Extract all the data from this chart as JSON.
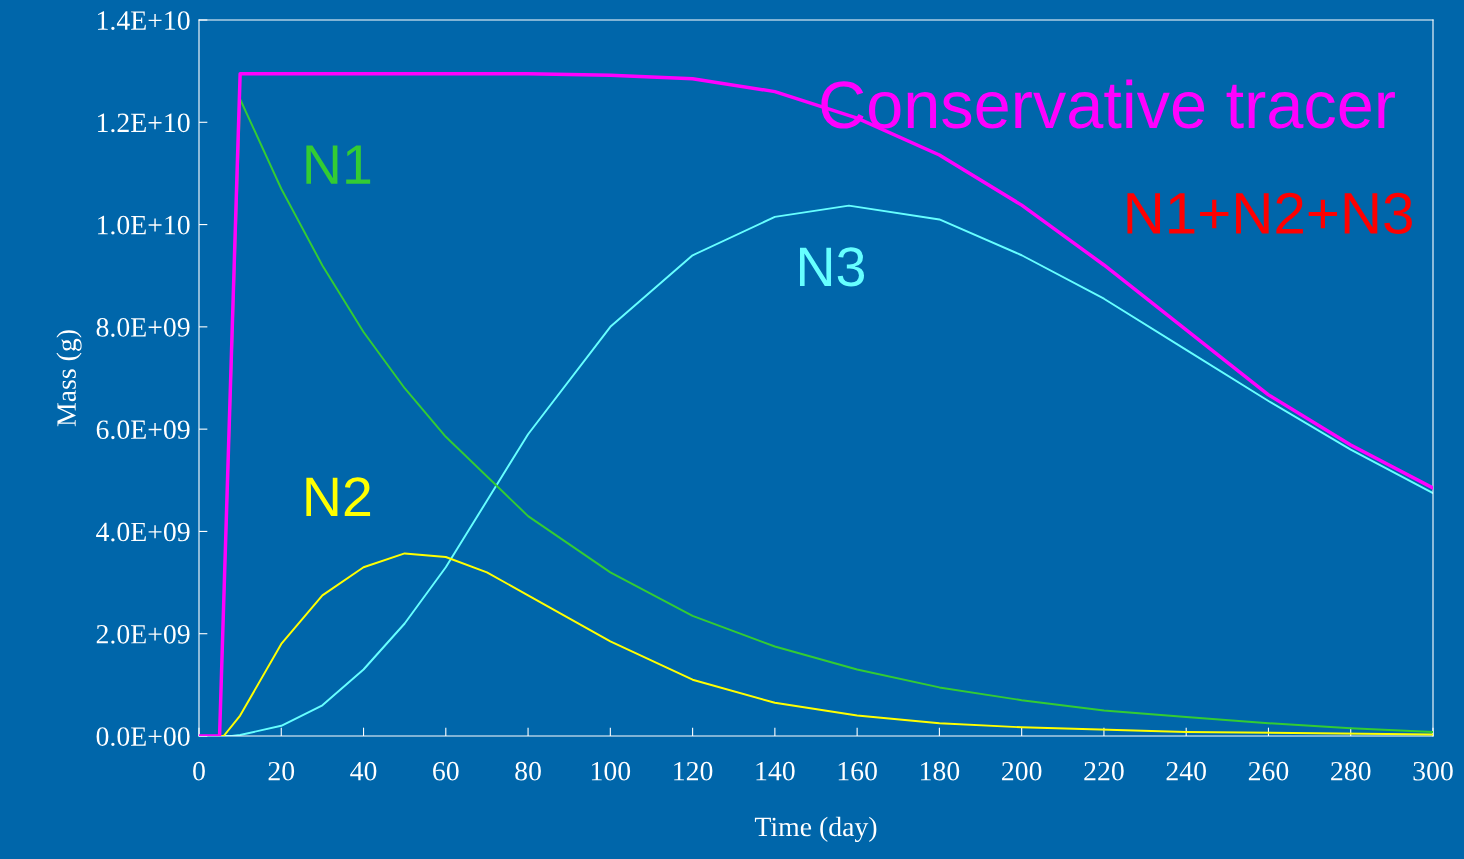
{
  "chart_data": {
    "type": "line",
    "xlabel": "Time (day)",
    "ylabel": "Mass (g)",
    "xlim": [
      0,
      300
    ],
    "xticks": [
      0,
      20,
      40,
      60,
      80,
      100,
      120,
      140,
      160,
      180,
      200,
      220,
      240,
      260,
      280,
      300
    ],
    "ylim": [
      0,
      14000000000
    ],
    "yticks": [
      {
        "value": 0,
        "label": "0.0E+00"
      },
      {
        "value": 2000000000,
        "label": "2.0E+09"
      },
      {
        "value": 4000000000,
        "label": "4.0E+09"
      },
      {
        "value": 6000000000,
        "label": "6.0E+09"
      },
      {
        "value": 8000000000,
        "label": "8.0E+09"
      },
      {
        "value": 10000000000,
        "label": "1.0E+10"
      },
      {
        "value": 12000000000,
        "label": "1.2E+10"
      },
      {
        "value": 14000000000,
        "label": "1.4E+10"
      }
    ],
    "grid": false,
    "legend": false,
    "marker": "none",
    "line_style": "solid",
    "annotations": [
      "N1+N2+N3"
    ],
    "series": [
      {
        "name": "Conservative tracer",
        "color": "#ff00ff",
        "x": [
          0,
          5,
          10,
          40,
          80,
          100,
          120,
          140,
          160,
          180,
          200,
          220,
          240,
          260,
          280,
          300
        ],
        "values": [
          0,
          0,
          12950000000,
          12950000000,
          12950000000,
          12920000000,
          12850000000,
          12600000000,
          12080000000,
          11360000000,
          10380000000,
          9210000000,
          7940000000,
          6670000000,
          5690000000,
          4850000000
        ]
      },
      {
        "name": "N1",
        "color": "#33cc33",
        "x": [
          0,
          5,
          10,
          20,
          30,
          40,
          50,
          60,
          80,
          100,
          120,
          140,
          160,
          180,
          200,
          220,
          240,
          260,
          280,
          300
        ],
        "values": [
          0,
          0,
          12450000000,
          10700000000,
          9200000000,
          7900000000,
          6800000000,
          5850000000,
          4300000000,
          3200000000,
          2350000000,
          1750000000,
          1300000000,
          950000000,
          700000000,
          500000000,
          370000000,
          250000000,
          150000000,
          80000000
        ]
      },
      {
        "name": "N2",
        "color": "#ffff00",
        "x": [
          0,
          6,
          10,
          20,
          30,
          40,
          50,
          60,
          70,
          80,
          100,
          120,
          140,
          160,
          180,
          200,
          240,
          300
        ],
        "values": [
          0,
          0,
          400000000,
          1800000000,
          2750000000,
          3300000000,
          3570000000,
          3500000000,
          3200000000,
          2750000000,
          1850000000,
          1100000000,
          650000000,
          400000000,
          250000000,
          170000000,
          80000000,
          30000000
        ]
      },
      {
        "name": "N3",
        "color": "#66ffff",
        "x": [
          0,
          8,
          10,
          20,
          30,
          40,
          50,
          60,
          70,
          80,
          100,
          120,
          140,
          158,
          180,
          200,
          220,
          240,
          260,
          280,
          300
        ],
        "values": [
          0,
          0,
          20000000,
          200000000,
          600000000,
          1300000000,
          2200000000,
          3300000000,
          4600000000,
          5900000000,
          8000000000,
          9400000000,
          10150000000,
          10370000000,
          10100000000,
          9400000000,
          8550000000,
          7550000000,
          6550000000,
          5600000000,
          4750000000
        ]
      }
    ]
  }
}
